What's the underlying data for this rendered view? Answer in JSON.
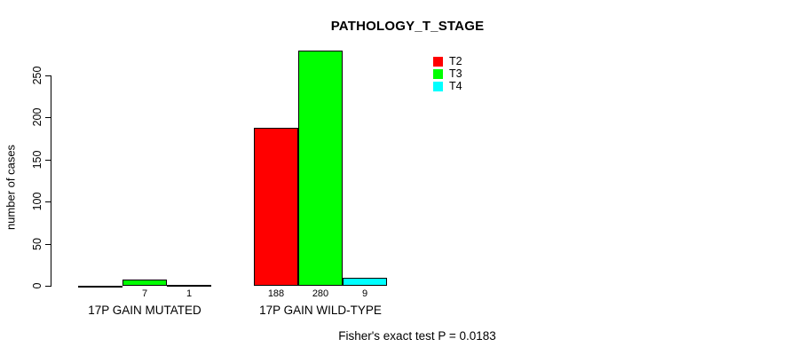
{
  "title": "PATHOLOGY_T_STAGE",
  "y_axis": {
    "label": "number of cases"
  },
  "footer": "Fisher's exact test P = 0.0183",
  "chart_data": {
    "type": "bar",
    "title": "PATHOLOGY_T_STAGE",
    "categories": [
      "17P GAIN MUTATED",
      "17P GAIN WILD-TYPE"
    ],
    "series": [
      {
        "name": "T2",
        "color": "#ff0000",
        "values": [
          0,
          188
        ]
      },
      {
        "name": "T3",
        "color": "#00ff00",
        "values": [
          7,
          280
        ]
      },
      {
        "name": "T4",
        "color": "#00ffff",
        "values": [
          1,
          9
        ]
      }
    ],
    "bar_value_labels": [
      [
        "",
        "7",
        "1"
      ],
      [
        "188",
        "280",
        "9"
      ]
    ],
    "xlabel": "",
    "ylabel": "number of cases",
    "ylim": [
      0,
      250
    ],
    "yticks": [
      0,
      50,
      100,
      150,
      200,
      250
    ],
    "grid": false,
    "legend_position": "top-right",
    "bar_border_color": "#000000",
    "annotation": "Fisher's exact test P = 0.0183"
  }
}
